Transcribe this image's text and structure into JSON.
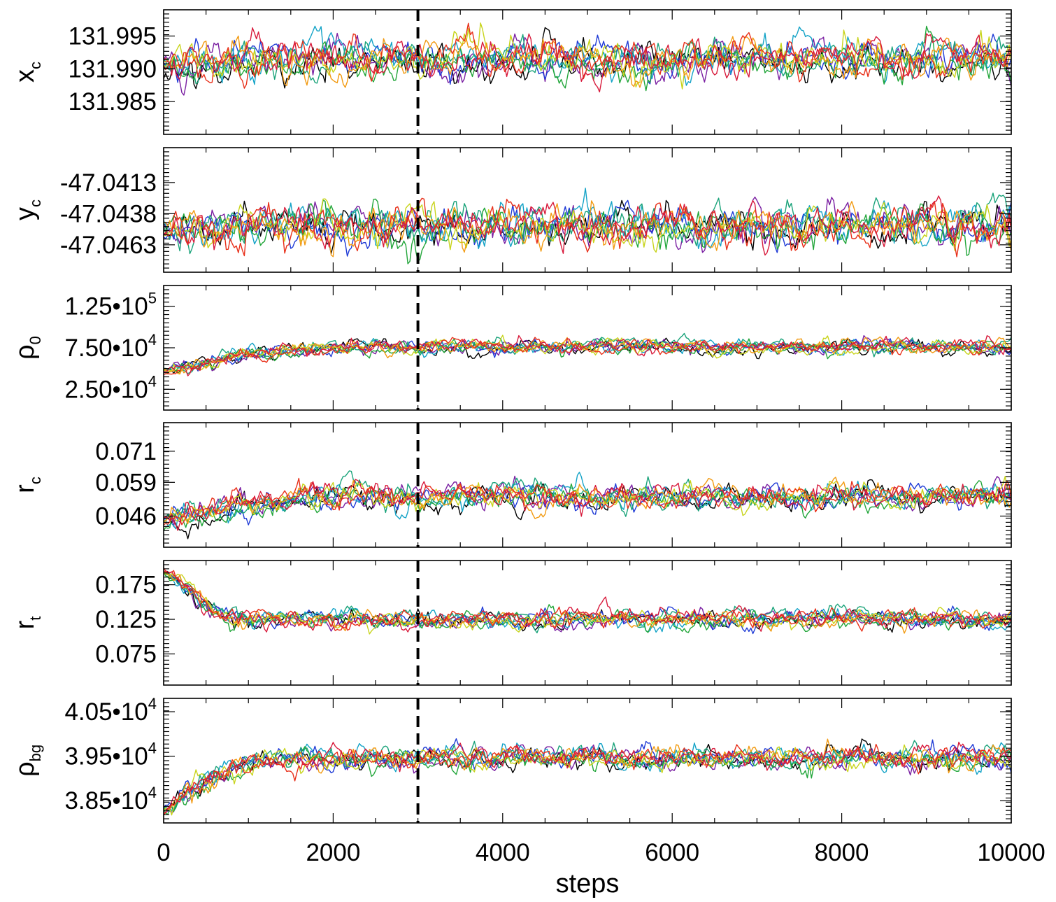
{
  "chart_data": {
    "type": "line",
    "description_title": "",
    "xlabel": "steps",
    "xlim": [
      0,
      10000
    ],
    "x_ticks": [
      0,
      2000,
      4000,
      6000,
      8000,
      10000
    ],
    "x_tick_labels": [
      "0",
      "2000",
      "4000",
      "6000",
      "8000",
      "10000"
    ],
    "burn_in_step": 3000,
    "n_steps": 10000,
    "walker_colors": [
      "#000000",
      "#7a1fa2",
      "#1f3bd6",
      "#14a3c7",
      "#1aa37a",
      "#22a63a",
      "#c8d41c",
      "#f29a11",
      "#e8301a",
      "#d81b3c"
    ],
    "panels": [
      {
        "id": "xc",
        "label_main": "x",
        "label_sub": "c",
        "ylim": [
          131.98,
          131.999
        ],
        "ticks": [
          131.995,
          131.99,
          131.985
        ],
        "tick_labels": [
          {
            "mant": "131.995",
            "exp": ""
          },
          {
            "mant": "131.990",
            "exp": ""
          },
          {
            "mant": "131.985",
            "exp": ""
          }
        ],
        "start": 131.991,
        "start_spread": 0.0012,
        "equilibrium": 131.9915,
        "eq_early": 131.9905,
        "noise": 0.0018,
        "settle_step": 1600
      },
      {
        "id": "yc",
        "label_main": "y",
        "label_sub": "c",
        "ylim": [
          -47.0485,
          -47.0385
        ],
        "ticks": [
          -47.0413,
          -47.0438,
          -47.0463
        ],
        "tick_labels": [
          {
            "mant": "-47.0413",
            "exp": ""
          },
          {
            "mant": "-47.0438",
            "exp": ""
          },
          {
            "mant": "-47.0463",
            "exp": ""
          }
        ],
        "start": -47.045,
        "start_spread": 0.0008,
        "equilibrium": -47.0448,
        "eq_early": -47.0452,
        "noise": 0.001,
        "settle_step": 1200
      },
      {
        "id": "rho0",
        "label_main": "ρ",
        "label_sub": "0",
        "ylim": [
          0,
          150000
        ],
        "ticks": [
          125000,
          75000,
          25000
        ],
        "tick_labels": [
          {
            "mant": "1.25•10",
            "exp": "5"
          },
          {
            "mant": "7.50•10",
            "exp": "4"
          },
          {
            "mant": "2.50•10",
            "exp": "4"
          }
        ],
        "start": 48000,
        "start_spread": 2000,
        "equilibrium": 76000,
        "eq_early": 48000,
        "noise": 5500,
        "settle_step": 2200
      },
      {
        "id": "rc",
        "label_main": "r",
        "label_sub": "c",
        "ylim": [
          0.034,
          0.082
        ],
        "ticks": [
          0.071,
          0.059,
          0.046
        ],
        "tick_labels": [
          {
            "mant": "0.071",
            "exp": ""
          },
          {
            "mant": "0.059",
            "exp": ""
          },
          {
            "mant": "0.046",
            "exp": ""
          }
        ],
        "start": 0.044,
        "start_spread": 0.002,
        "equilibrium": 0.0535,
        "eq_early": 0.044,
        "noise": 0.003,
        "settle_step": 2000
      },
      {
        "id": "rt",
        "label_main": "r",
        "label_sub": "t",
        "ylim": [
          0.03,
          0.21
        ],
        "ticks": [
          0.175,
          0.125,
          0.075
        ],
        "tick_labels": [
          {
            "mant": "0.175",
            "exp": ""
          },
          {
            "mant": "0.125",
            "exp": ""
          },
          {
            "mant": "0.075",
            "exp": ""
          }
        ],
        "start": 0.195,
        "start_spread": 0.006,
        "equilibrium": 0.125,
        "eq_early": 0.195,
        "noise": 0.008,
        "settle_step": 900
      },
      {
        "id": "rhobg",
        "label_main": "ρ",
        "label_sub": "bg",
        "ylim": [
          38000,
          40800
        ],
        "ticks": [
          40500,
          39500,
          38500
        ],
        "tick_labels": [
          {
            "mant": "4.05•10",
            "exp": "4"
          },
          {
            "mant": "3.95•10",
            "exp": "4"
          },
          {
            "mant": "3.85•10",
            "exp": "4"
          }
        ],
        "start": 38300,
        "start_spread": 150,
        "equilibrium": 39450,
        "eq_early": 38300,
        "noise": 160,
        "settle_step": 1400
      }
    ]
  }
}
